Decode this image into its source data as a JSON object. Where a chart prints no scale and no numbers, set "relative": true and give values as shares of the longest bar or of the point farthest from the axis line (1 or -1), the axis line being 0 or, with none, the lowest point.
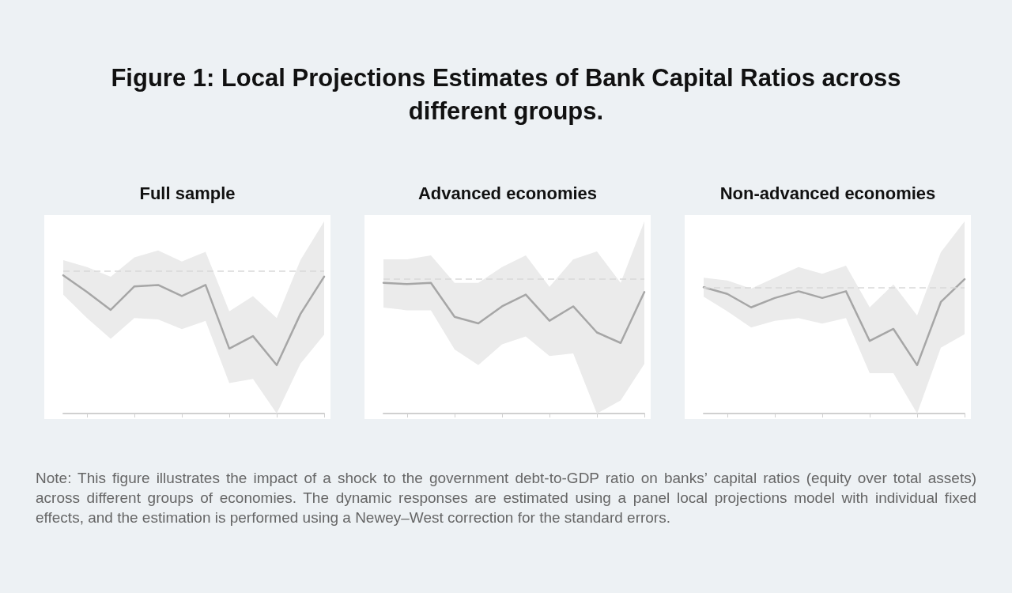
{
  "chart_data": [
    {
      "type": "other",
      "title": "Figure 1: Local Projections Estimates of Bank Capital Ratios across different groups.",
      "annotations": [
        "Note: This figure illustrates the impact of a shock to the government debt-to-GDP ratio on banks’ capital ratios (equity over total assets) across different groups of economies. The dynamic responses are estimated using a panel local projections model with individual fixed effects, and the estimation is performed using a Newey–West correction for the standard errors."
      ]
    },
    {
      "type": "line",
      "title": "Full sample",
      "relative": true,
      "marker": "none",
      "line_style": "solid",
      "categories": [
        null,
        null,
        null,
        null,
        null,
        null,
        null,
        null,
        null,
        null,
        null,
        null
      ],
      "series": [
        {
          "color": "#a6a6a6",
          "values": [
            1,
            0.88,
            0.75,
            0.92,
            0.93,
            0.85,
            0.93,
            0.47,
            0.56,
            0.35,
            0.72,
            0.99
          ],
          "upper": [
            1.11,
            1.06,
            0.99,
            1.13,
            1.18,
            1.1,
            1.17,
            0.74,
            0.85,
            0.69,
            1.11,
            1.39
          ],
          "lower": [
            0.86,
            0.69,
            0.54,
            0.69,
            0.68,
            0.61,
            0.67,
            0.22,
            0.25,
            0,
            0.36,
            0.57
          ]
        }
      ],
      "ref_lines": [
        {
          "axis": "y",
          "value": 1.03,
          "color": "#d9d9d9",
          "line_style": "dashed"
        }
      ]
    },
    {
      "type": "line",
      "title": "Advanced economies",
      "relative": true,
      "marker": "none",
      "line_style": "solid",
      "categories": [
        null,
        null,
        null,
        null,
        null,
        null,
        null,
        null,
        null,
        null,
        null,
        null
      ],
      "series": [
        {
          "color": "#a6a6a6",
          "values": [
            1,
            0.99,
            1,
            0.74,
            0.69,
            0.82,
            0.91,
            0.71,
            0.82,
            0.62,
            0.54,
            0.93
          ],
          "upper": [
            1.18,
            1.18,
            1.21,
            1,
            1,
            1.12,
            1.21,
            0.97,
            1.18,
            1.24,
            1,
            1.47
          ],
          "lower": [
            0.81,
            0.79,
            0.79,
            0.49,
            0.37,
            0.53,
            0.59,
            0.44,
            0.46,
            0,
            0.1,
            0.38
          ]
        }
      ],
      "ref_lines": [
        {
          "axis": "y",
          "value": 1.03,
          "color": "#d9d9d9",
          "line_style": "dashed"
        }
      ]
    },
    {
      "type": "line",
      "title": "Non-advanced economies",
      "relative": true,
      "marker": "none",
      "line_style": "solid",
      "categories": [
        null,
        null,
        null,
        null,
        null,
        null,
        null,
        null,
        null,
        null,
        null,
        null
      ],
      "series": [
        {
          "color": "#a6a6a6",
          "values": [
            0.94,
            0.89,
            0.79,
            0.86,
            0.91,
            0.86,
            0.91,
            0.54,
            0.63,
            0.36,
            0.83,
            1
          ],
          "upper": [
            1.01,
            0.99,
            0.93,
            1.01,
            1.09,
            1.04,
            1.1,
            0.79,
            0.96,
            0.73,
            1.2,
            1.43
          ],
          "lower": [
            0.87,
            0.76,
            0.64,
            0.69,
            0.71,
            0.67,
            0.71,
            0.3,
            0.3,
            0,
            0.49,
            0.59
          ]
        }
      ],
      "ref_lines": [
        {
          "axis": "y",
          "value": 0.94,
          "color": "#d9d9d9",
          "line_style": "dashed"
        }
      ]
    }
  ]
}
